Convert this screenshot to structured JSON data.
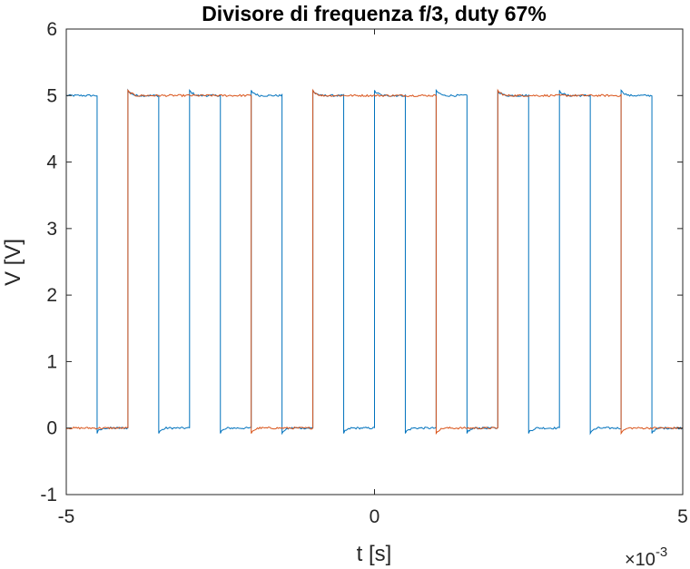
{
  "chart_data": {
    "type": "line",
    "title": "Divisore di frequenza f/3, duty 67%",
    "xlabel": "t [s]",
    "ylabel": "V [V]",
    "x_exponent_base": "×10",
    "x_exponent_power": "-3",
    "xlim": [
      -5,
      5
    ],
    "ylim": [
      -1,
      6
    ],
    "xticks": [
      -5,
      0,
      5
    ],
    "xtick_labels": [
      "-5",
      "0",
      "5"
    ],
    "yticks": [
      -1,
      0,
      1,
      2,
      3,
      4,
      5,
      6
    ],
    "ytick_labels": [
      "-1",
      "0",
      "1",
      "2",
      "3",
      "4",
      "5",
      "6"
    ],
    "grid": false,
    "legend": "none",
    "x_unit_scale": "1e-3",
    "series": [
      {
        "color": "#0072BD",
        "low": 0.0,
        "high": 5.0,
        "x_start": -5.0,
        "x_end": 5.0,
        "start_level": "high",
        "transitions_ms": [
          -4.5,
          -4.0,
          -3.5,
          -3.0,
          -2.5,
          -2.0,
          -1.5,
          -1.0,
          -0.5,
          0.0,
          0.5,
          1.0,
          1.5,
          2.0,
          2.5,
          3.0,
          3.5,
          4.0,
          4.5
        ]
      },
      {
        "color": "#D95319",
        "low": 0.0,
        "high": 5.0,
        "x_start": -5.0,
        "x_end": 5.0,
        "start_level": "low",
        "transitions_ms": [
          -4.0,
          -2.0,
          -1.0,
          1.0,
          2.0,
          4.0
        ]
      }
    ]
  }
}
